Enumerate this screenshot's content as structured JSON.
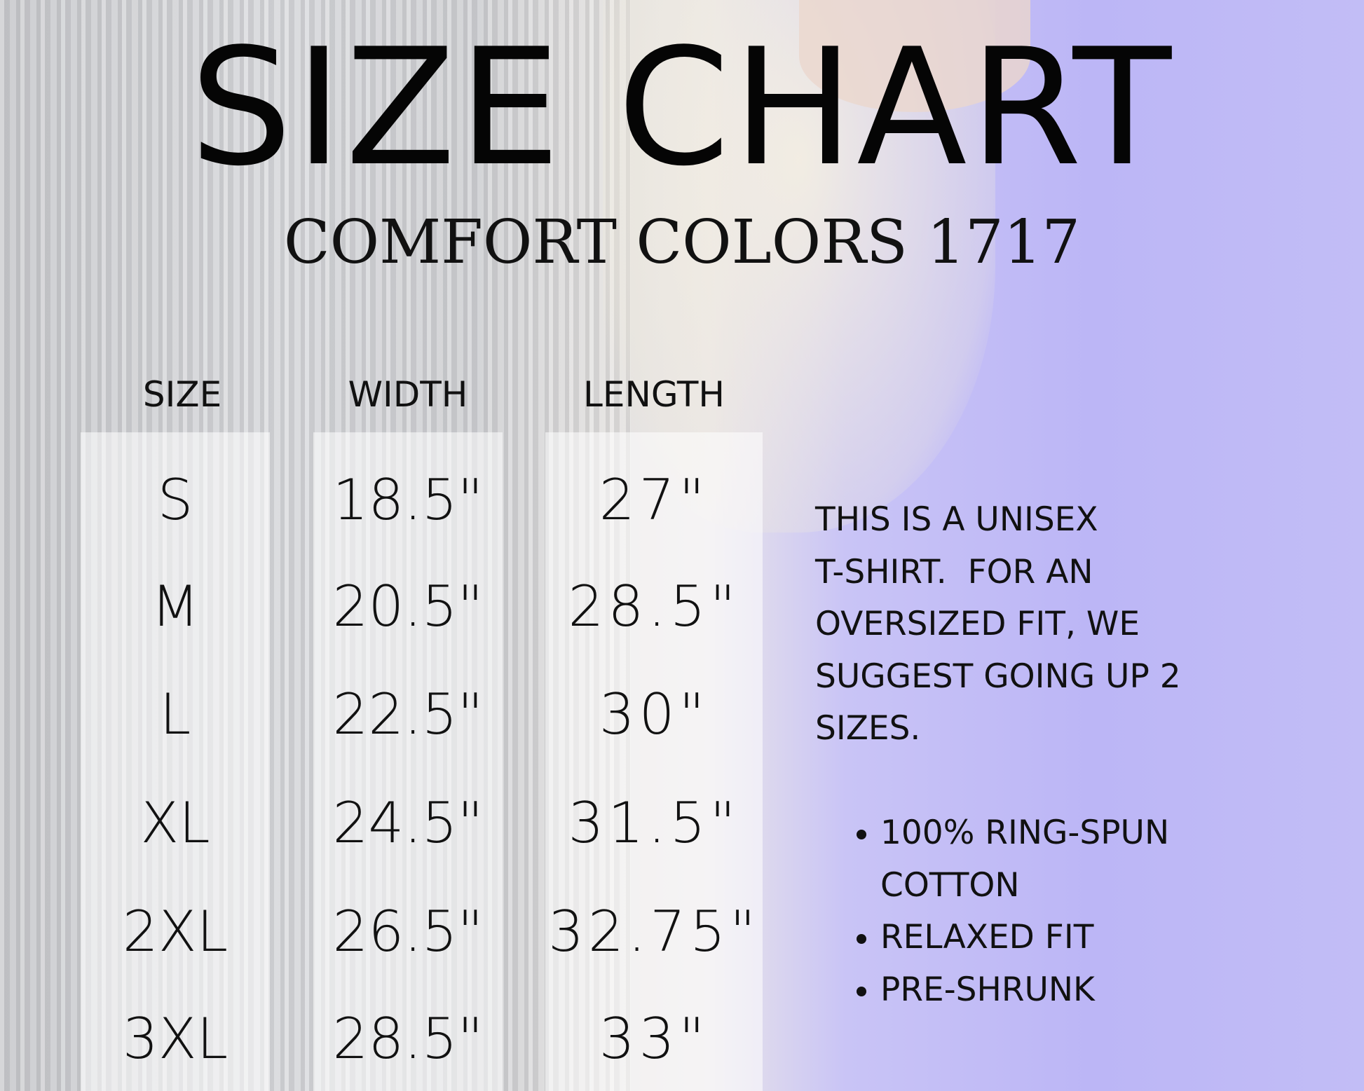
{
  "title": "SIZE CHART",
  "subtitle": "COMFORT COLORS 1717",
  "table": {
    "headers": [
      "SIZE",
      "WIDTH",
      "LENGTH"
    ],
    "rows": [
      [
        "S",
        "18.5\"",
        "27\""
      ],
      [
        "M",
        "20.5\"",
        "28.5\""
      ],
      [
        "L",
        "22.5\"",
        "30\""
      ],
      [
        "XL",
        "24.5\"",
        "31.5\""
      ],
      [
        "2XL",
        "26.5\"",
        "32.75\""
      ],
      [
        "3XL",
        "28.5\"",
        "33\""
      ]
    ]
  },
  "note": [
    "THIS IS A UNISEX",
    "T-SHIRT.  FOR AN",
    "OVERSIZED FIT, WE",
    "SUGGEST GOING UP 2",
    "SIZES."
  ],
  "features": [
    "100% RING-SPUN",
    "COTTON",
    "RELAXED FIT",
    "PRE-SHRUNK"
  ],
  "colors": {
    "shirt": "#bcb6f6",
    "background": "#cfd0d3",
    "text": "#111111"
  }
}
